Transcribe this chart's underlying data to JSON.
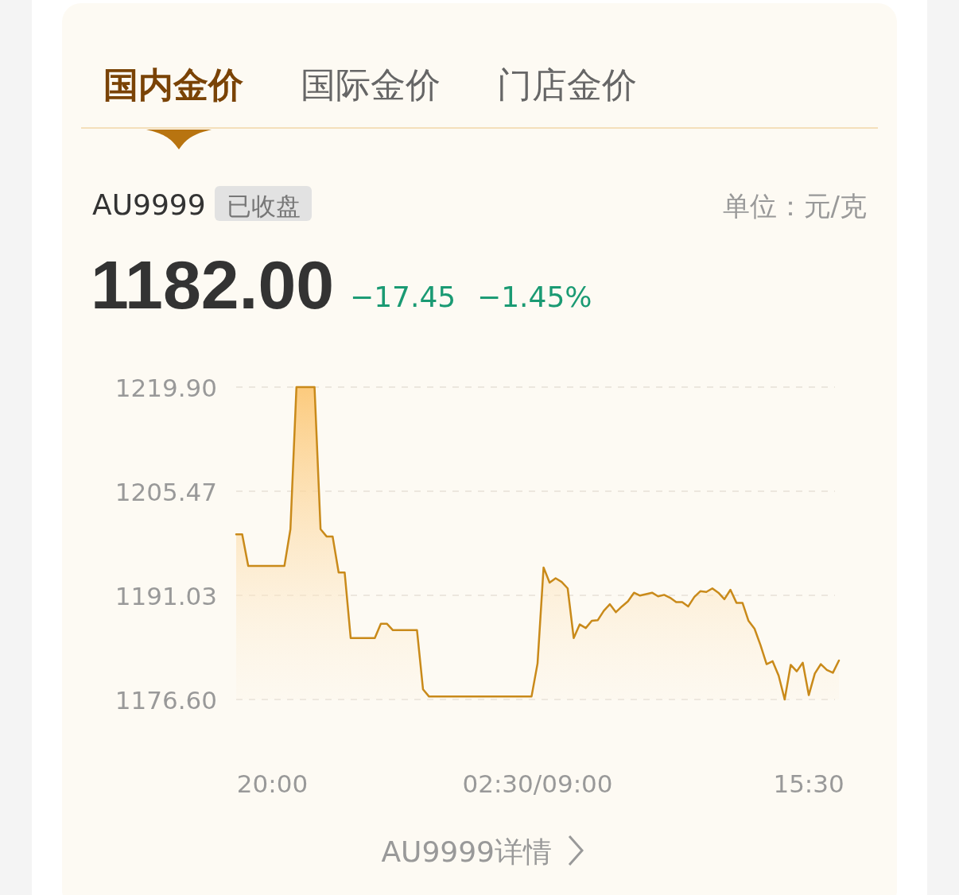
{
  "chart_data": {
    "type": "area",
    "annotations": [
      "国内金价",
      "国际金价",
      "门店金价",
      "AU9999",
      "已收盘",
      "1182.00",
      "−17.45",
      "−1.45%",
      "AU9999详情",
      "单位：元/克"
    ],
    "categories": [
      null,
      null,
      null,
      null,
      null,
      null,
      "20:00",
      null,
      null,
      null,
      null,
      null,
      null,
      null,
      null,
      null,
      null,
      null,
      null,
      null,
      null,
      null,
      null,
      null,
      null,
      null,
      null,
      null,
      null,
      null,
      null,
      null,
      null,
      null,
      null,
      null,
      null,
      null,
      null,
      null,
      null,
      null,
      null,
      null,
      null,
      null,
      null,
      null,
      null,
      null,
      "02:30/09:00",
      null,
      null,
      null,
      null,
      null,
      null,
      null,
      null,
      null,
      null,
      null,
      null,
      null,
      null,
      null,
      null,
      null,
      null,
      null,
      null,
      null,
      null,
      null,
      null,
      null,
      null,
      null,
      null,
      null,
      null,
      null,
      null,
      null,
      null,
      null,
      null,
      null,
      null,
      null,
      null,
      null,
      null,
      null,
      null,
      "15:30",
      null,
      null,
      null,
      null,
      null
    ],
    "ylim": [
      1176.6,
      1219.9
    ],
    "yticks": [
      {
        "value": 1176.6,
        "label": "1176.60"
      },
      {
        "value": 1191.03,
        "label": "1191.03"
      },
      {
        "value": 1205.47,
        "label": "1205.47"
      },
      {
        "value": 1219.9,
        "label": "1219.90"
      }
    ],
    "grid": "y",
    "series": [
      {
        "color": "#c98a1a",
        "values": [
          1199.5,
          1199.5,
          1195.1,
          1195.1,
          1195.1,
          1195.1,
          1195.1,
          1195.1,
          1195.1,
          1200.2,
          1219.9,
          1219.9,
          1219.9,
          1219.9,
          1200.2,
          1199.2,
          1199.2,
          1194.2,
          1194.2,
          1185.1,
          1185.1,
          1185.1,
          1185.1,
          1185.1,
          1187.1,
          1187.1,
          1186.2,
          1186.2,
          1186.2,
          1186.2,
          1186.2,
          1178.0,
          1177.0,
          1177.0,
          1177.0,
          1177.0,
          1177.0,
          1177.0,
          1177.0,
          1177.0,
          1177.0,
          1177.0,
          1177.0,
          1177.0,
          1177.0,
          1177.0,
          1177.0,
          1177.0,
          1177.0,
          1177.0,
          1181.6,
          1194.9,
          1192.8,
          1193.4,
          1192.9,
          1192.0,
          1185.1,
          1187.0,
          1186.5,
          1187.5,
          1187.6,
          1188.9,
          1189.8,
          1188.7,
          1189.5,
          1190.2,
          1191.4,
          1191.0,
          1191.2,
          1191.4,
          1190.9,
          1191.1,
          1190.7,
          1190.1,
          1190.1,
          1189.5,
          1190.8,
          1191.6,
          1191.5,
          1192.0,
          1191.4,
          1190.5,
          1191.8,
          1190.0,
          1190.0,
          1187.5,
          1186.4,
          1184.1,
          1181.5,
          1181.9,
          1179.9,
          1176.6,
          1181.4,
          1180.5,
          1181.7,
          1177.2,
          1180.2,
          1181.5,
          1180.7,
          1180.3,
          1182.0
        ]
      }
    ]
  }
}
